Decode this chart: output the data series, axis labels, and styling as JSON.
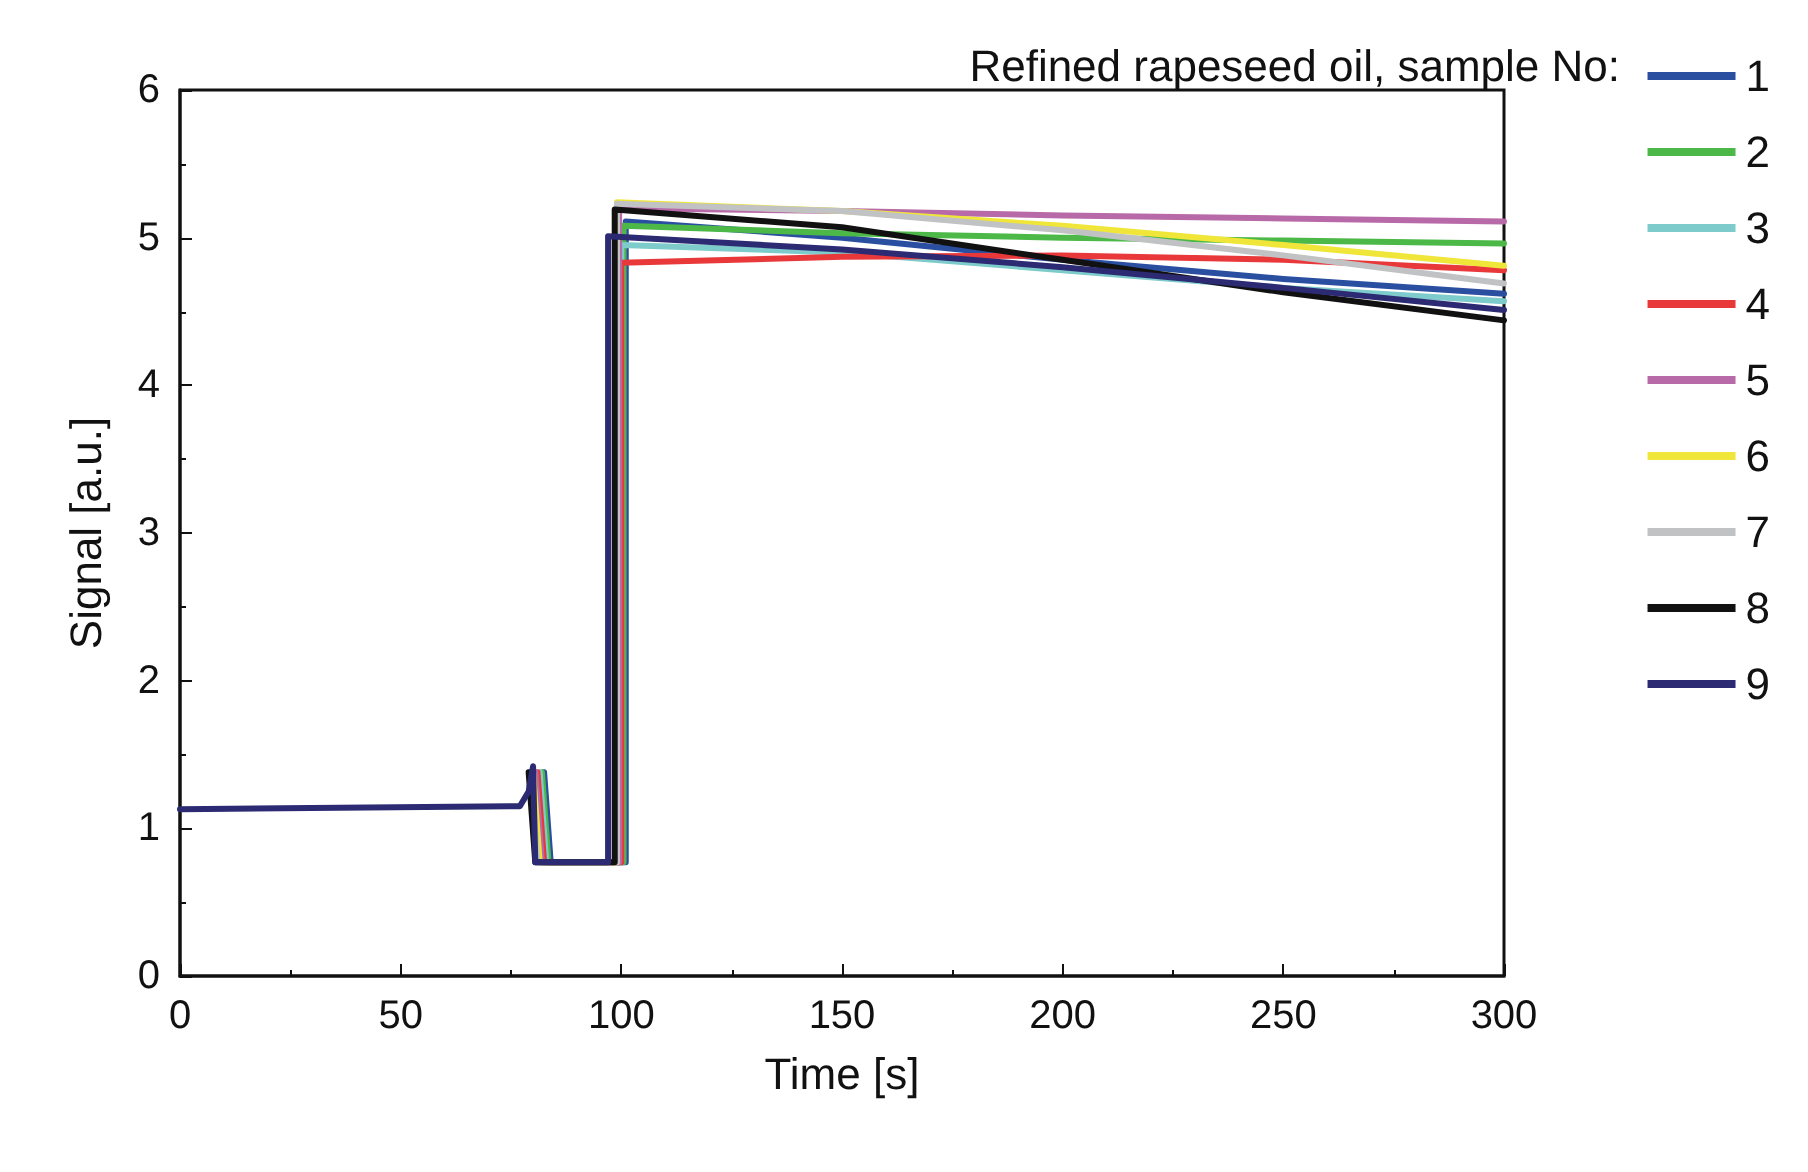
{
  "chart_data": {
    "type": "line",
    "xlabel": "Time [s]",
    "ylabel": "Signal [a.u.]",
    "legend_title": "Refined rapeseed oil, sample No:",
    "legend": "right",
    "grid": false,
    "marker": "none",
    "line_style": "solid",
    "xlim": [
      0,
      300
    ],
    "xticks": [
      0,
      50,
      100,
      150,
      200,
      250,
      300
    ],
    "ylim": [
      0,
      6
    ],
    "yticks": [
      0,
      1,
      2,
      3,
      4,
      5,
      6
    ],
    "series": [
      {
        "name": "1",
        "color": "#2a4fa0",
        "x": [
          82.5,
          84,
          101,
          101,
          150,
          200,
          250,
          300
        ],
        "values": [
          1.38,
          0.77,
          0.77,
          5.11,
          5.0,
          4.85,
          4.72,
          4.62
        ]
      },
      {
        "name": "2",
        "color": "#4cb848",
        "x": [
          82,
          83.5,
          100.5,
          100.5,
          150,
          200,
          250,
          300
        ],
        "values": [
          1.38,
          0.77,
          0.77,
          5.08,
          5.03,
          5.0,
          4.98,
          4.96
        ]
      },
      {
        "name": "3",
        "color": "#7ecbcb",
        "x": [
          81.5,
          83,
          100,
          100,
          150,
          200,
          250,
          300
        ],
        "values": [
          1.38,
          0.77,
          0.77,
          4.95,
          4.9,
          4.78,
          4.66,
          4.57
        ]
      },
      {
        "name": "4",
        "color": "#e8383a",
        "x": [
          81,
          82.5,
          100,
          100,
          150,
          200,
          250,
          300
        ],
        "values": [
          1.38,
          0.77,
          0.77,
          4.83,
          4.87,
          4.88,
          4.85,
          4.78
        ]
      },
      {
        "name": "5",
        "color": "#b86aa8",
        "x": [
          80.5,
          82,
          99.5,
          99.5,
          150,
          200,
          250,
          300
        ],
        "values": [
          1.38,
          0.77,
          0.77,
          5.2,
          5.18,
          5.15,
          5.13,
          5.11
        ]
      },
      {
        "name": "6",
        "color": "#f0e63a",
        "x": [
          80,
          81.5,
          99,
          99,
          150,
          200,
          250,
          300
        ],
        "values": [
          1.38,
          0.77,
          0.77,
          5.24,
          5.18,
          5.08,
          4.95,
          4.81
        ]
      },
      {
        "name": "7",
        "color": "#c0c2c4",
        "x": [
          79.5,
          81,
          99,
          99,
          150,
          200,
          250,
          300
        ],
        "values": [
          1.38,
          0.77,
          0.77,
          5.23,
          5.18,
          5.05,
          4.88,
          4.69
        ]
      },
      {
        "name": "8",
        "color": "#111111",
        "x": [
          79,
          80.5,
          98.5,
          98.5,
          150,
          200,
          250,
          300
        ],
        "values": [
          1.38,
          0.77,
          0.77,
          5.19,
          5.07,
          4.85,
          4.63,
          4.44
        ]
      },
      {
        "name": "9",
        "color": "#2b2a72",
        "x": [
          0,
          77,
          79,
          80,
          80.5,
          97,
          97,
          150,
          200,
          250,
          300
        ],
        "values": [
          1.13,
          1.15,
          1.25,
          1.42,
          0.77,
          0.77,
          5.01,
          4.92,
          4.8,
          4.66,
          4.51
        ]
      }
    ]
  }
}
